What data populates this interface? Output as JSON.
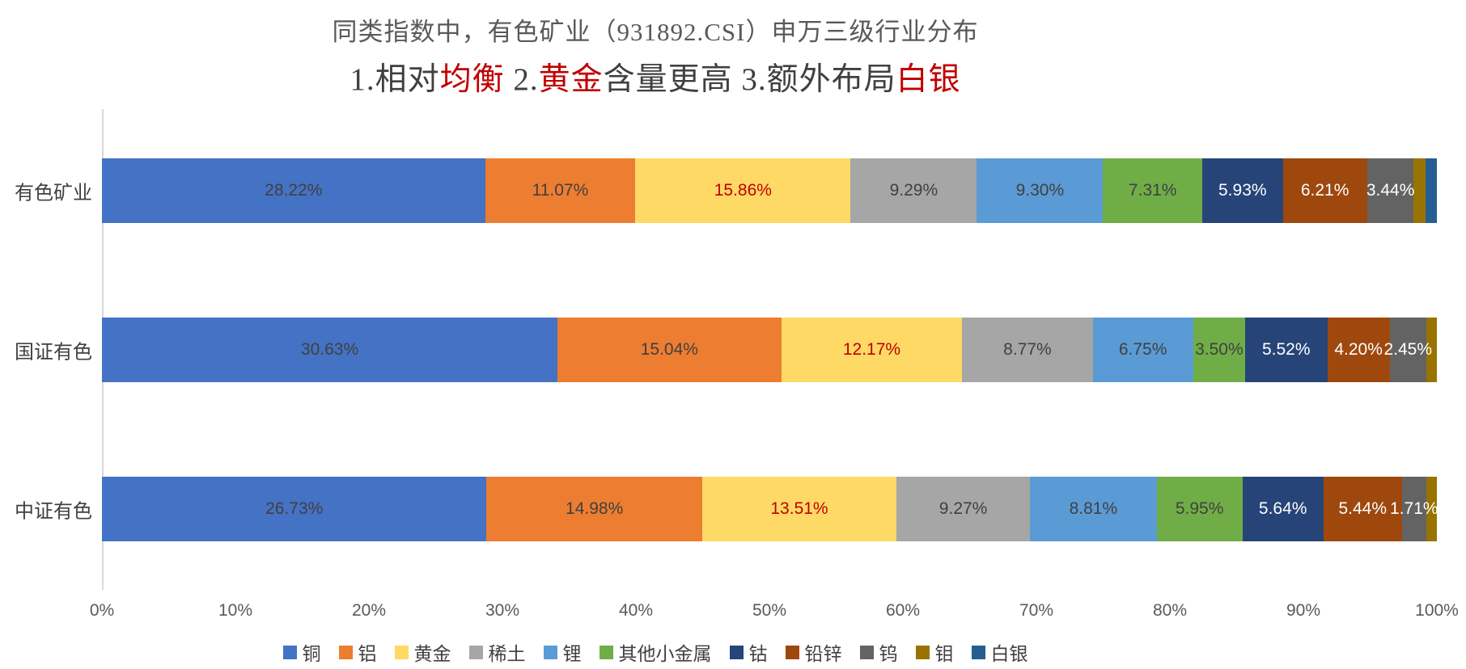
{
  "title": {
    "line1": "同类指数中，有色矿业（931892.CSI）申万三级行业分布",
    "line2_parts": [
      {
        "text": "1.相对",
        "red": false
      },
      {
        "text": "均衡",
        "red": true
      },
      {
        "text": " 2.",
        "red": false
      },
      {
        "text": "黄金",
        "red": true
      },
      {
        "text": "含量更高 3.额外布局",
        "red": false
      },
      {
        "text": "白银",
        "red": true
      }
    ]
  },
  "colors": {
    "title_gray": "#595959",
    "highlight_red": "#c00000",
    "axis_line": "#d9d9d9",
    "tick_text": "#595959",
    "dark_label_text": "#404040",
    "white_label_text": "#ffffff"
  },
  "chart_data": {
    "type": "bar",
    "variant": "horizontal-100%-stacked",
    "grid": "off",
    "legend_position": "bottom",
    "xlabel": "",
    "ylabel": "",
    "xlim_percent": [
      0,
      100
    ],
    "xticks": [
      "0%",
      "10%",
      "20%",
      "30%",
      "40%",
      "50%",
      "60%",
      "70%",
      "80%",
      "90%",
      "100%"
    ],
    "categories": [
      "有色矿业",
      "国证有色",
      "中证有色"
    ],
    "series_names": [
      "铜",
      "铝",
      "黄金",
      "稀土",
      "锂",
      "其他小金属",
      "钴",
      "铅锌",
      "钨",
      "钼",
      "白银"
    ],
    "series_colors": [
      "#4472C4",
      "#ED7D31",
      "#FFD966",
      "#A6A6A6",
      "#5B9BD5",
      "#70AD47",
      "#264478",
      "#9E480E",
      "#636363",
      "#997300",
      "#255E91"
    ],
    "series_label_colors": [
      "#404040",
      "#404040",
      "#C00000",
      "#404040",
      "#404040",
      "#404040",
      "#FFFFFF",
      "#FFFFFF",
      "#FFFFFF",
      "#FFFFFF",
      "#FFFFFF"
    ],
    "rows": [
      {
        "category": "有色矿业",
        "values": [
          28.22,
          11.07,
          15.86,
          9.29,
          9.3,
          7.31,
          5.93,
          6.21,
          3.44,
          0.85,
          0.85
        ],
        "labels": [
          "28.22%",
          "11.07%",
          "15.86%",
          "9.29%",
          "9.30%",
          "7.31%",
          "5.93%",
          "6.21%",
          "3.44%",
          "",
          ""
        ]
      },
      {
        "category": "国证有色",
        "values": [
          30.63,
          15.04,
          12.17,
          8.77,
          6.75,
          3.5,
          5.52,
          4.2,
          2.45,
          0.72,
          0
        ],
        "labels": [
          "30.63%",
          "15.04%",
          "12.17%",
          "8.77%",
          "6.75%",
          "3.50%",
          "5.52%",
          "4.20%",
          "2.45%",
          "",
          ""
        ]
      },
      {
        "category": "中证有色",
        "values": [
          26.73,
          14.98,
          13.51,
          9.27,
          8.81,
          5.95,
          5.64,
          5.44,
          1.71,
          0.73,
          0
        ],
        "labels": [
          "26.73%",
          "14.98%",
          "13.51%",
          "9.27%",
          "8.81%",
          "5.95%",
          "5.64%",
          "5.44%",
          "1.71%",
          "",
          ""
        ]
      }
    ],
    "legend": [
      "铜",
      "铝",
      "黄金",
      "稀土",
      "锂",
      "其他小金属",
      "钴",
      "铅锌",
      "钨",
      "钼",
      "白银"
    ]
  }
}
